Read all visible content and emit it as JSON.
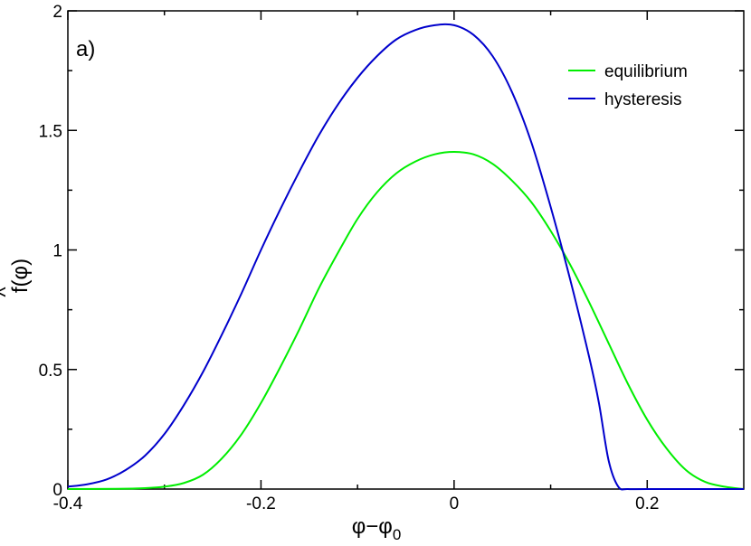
{
  "chart_data": {
    "type": "line",
    "panel_label": "a)",
    "xlabel": {
      "main": "φ−φ",
      "sub": "0"
    },
    "ylabel": {
      "hat": "^",
      "main": "f(φ)"
    },
    "xlim": [
      -0.4,
      0.3
    ],
    "ylim": [
      0,
      2
    ],
    "xticks": [
      -0.4,
      -0.2,
      0,
      0.2
    ],
    "xtick_labels": [
      "-0.4",
      "-0.2",
      "0",
      "0.2"
    ],
    "yticks": [
      0,
      0.5,
      1,
      1.5,
      2
    ],
    "ytick_labels": [
      "0",
      "0.5",
      "1",
      "1.5",
      "2"
    ],
    "grid": false,
    "legend_position": "top-right",
    "series": [
      {
        "name": "equilibrium",
        "color": "#00ee00",
        "x": [
          -0.4,
          -0.35,
          -0.32,
          -0.3,
          -0.28,
          -0.26,
          -0.24,
          -0.22,
          -0.2,
          -0.18,
          -0.16,
          -0.14,
          -0.12,
          -0.1,
          -0.08,
          -0.06,
          -0.04,
          -0.02,
          0,
          0.02,
          0.04,
          0.06,
          0.08,
          0.1,
          0.12,
          0.14,
          0.16,
          0.18,
          0.2,
          0.22,
          0.24,
          0.26,
          0.28,
          0.3
        ],
        "y": [
          0,
          0.001,
          0.004,
          0.01,
          0.025,
          0.06,
          0.13,
          0.23,
          0.36,
          0.51,
          0.67,
          0.84,
          0.99,
          1.13,
          1.24,
          1.32,
          1.37,
          1.4,
          1.41,
          1.4,
          1.36,
          1.29,
          1.2,
          1.08,
          0.94,
          0.78,
          0.61,
          0.44,
          0.29,
          0.17,
          0.08,
          0.03,
          0.01,
          0
        ]
      },
      {
        "name": "hysteresis",
        "color": "#0000cc",
        "x": [
          -0.4,
          -0.38,
          -0.36,
          -0.34,
          -0.32,
          -0.3,
          -0.28,
          -0.26,
          -0.24,
          -0.22,
          -0.2,
          -0.18,
          -0.16,
          -0.14,
          -0.12,
          -0.1,
          -0.08,
          -0.06,
          -0.04,
          -0.02,
          0,
          0.02,
          0.04,
          0.06,
          0.08,
          0.1,
          0.12,
          0.14,
          0.15,
          0.16,
          0.17,
          0.18,
          0.2,
          0.3
        ],
        "y": [
          0.01,
          0.02,
          0.04,
          0.08,
          0.14,
          0.23,
          0.35,
          0.49,
          0.65,
          0.82,
          1.0,
          1.17,
          1.33,
          1.48,
          1.61,
          1.72,
          1.81,
          1.88,
          1.92,
          1.94,
          1.94,
          1.9,
          1.81,
          1.66,
          1.45,
          1.18,
          0.88,
          0.55,
          0.36,
          0.12,
          0.01,
          0,
          0,
          0
        ]
      }
    ]
  }
}
